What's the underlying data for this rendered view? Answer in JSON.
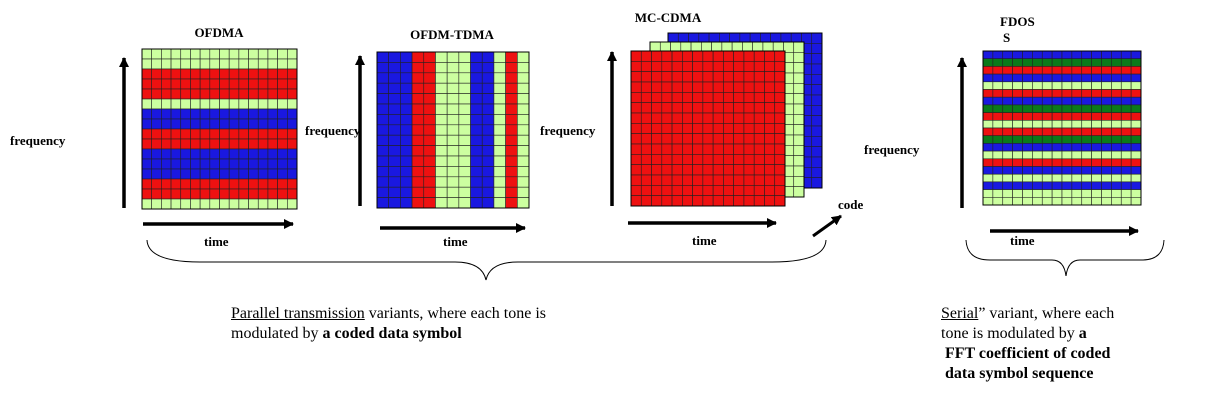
{
  "colors": {
    "green": "#ccffa0",
    "red": "#ee1111",
    "blue": "#1a18e0",
    "dark_green": "#0b7a1a",
    "grid_line": "#222222"
  },
  "panels": {
    "ofdma": {
      "title": "OFDMA",
      "ylabel": "frequency",
      "xlabel": "time",
      "row_colors": [
        "green",
        "green",
        "red",
        "red",
        "red",
        "green",
        "blue",
        "blue",
        "red",
        "red",
        "blue",
        "blue",
        "blue",
        "red",
        "red",
        "green"
      ]
    },
    "ofdm_tdma": {
      "title": "OFDM-TDMA",
      "ylabel": "frequency",
      "xlabel": "time",
      "col_colors": [
        "blue",
        "blue",
        "blue",
        "red",
        "red",
        "green",
        "green",
        "green",
        "blue",
        "blue",
        "green",
        "red",
        "green"
      ]
    },
    "mc_cdma": {
      "title": "MC-CDMA",
      "ylabel": "frequency",
      "xlabel": "time",
      "zlabel": "code",
      "layer_colors": [
        "blue",
        "green",
        "red"
      ]
    },
    "fdoss": {
      "title_line1": "FDOS",
      "title_line2": "S",
      "ylabel": "frequency",
      "xlabel": "time",
      "row_colors": [
        "blue",
        "dark_green",
        "red",
        "blue",
        "green",
        "red",
        "blue",
        "dark_green",
        "red",
        "green",
        "red",
        "dark_green",
        "blue",
        "green",
        "red",
        "blue",
        "green",
        "blue",
        "green",
        "green"
      ]
    }
  },
  "captions": {
    "parallel": {
      "underlined": "Parallel transmission",
      "rest_line1": " variants, where each tone is",
      "line2_plain": "modulated by ",
      "line2_bold": "a coded data symbol"
    },
    "serial": {
      "underlined": "Serial",
      "rest_line1": "” variant, where each",
      "line2_plain": "tone  is modulated by ",
      "line2_bold": "a",
      "line3_bold": "FFT coefficient of coded",
      "line4_bold": "data symbol sequence"
    }
  }
}
